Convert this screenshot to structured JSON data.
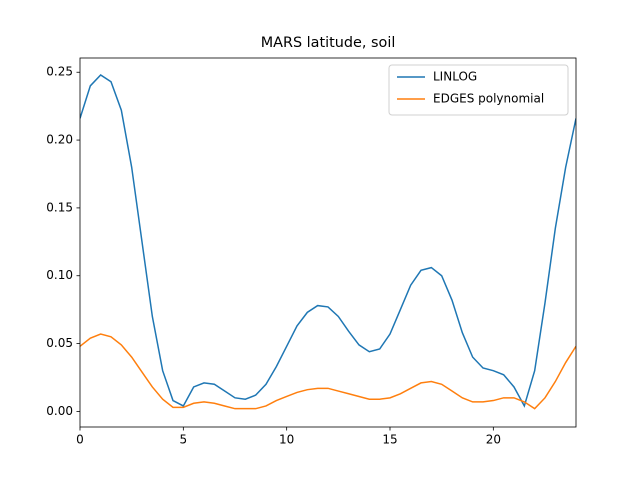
{
  "chart_data": {
    "type": "line",
    "title": "MARS latitude, soil",
    "x": [
      0,
      0.5,
      1,
      1.5,
      2,
      2.5,
      3,
      3.5,
      4,
      4.5,
      5,
      5.5,
      6,
      6.5,
      7,
      7.5,
      8,
      8.5,
      9,
      9.5,
      10,
      10.5,
      11,
      11.5,
      12,
      12.5,
      13,
      13.5,
      14,
      14.5,
      15,
      15.5,
      16,
      16.5,
      17,
      17.5,
      18,
      18.5,
      19,
      19.5,
      20,
      20.5,
      21,
      21.5,
      22,
      22.5,
      23,
      23.5,
      24
    ],
    "series": [
      {
        "name": "LINLOG",
        "color": "#1f77b4",
        "values": [
          0.216,
          0.24,
          0.248,
          0.243,
          0.222,
          0.18,
          0.125,
          0.07,
          0.03,
          0.008,
          0.004,
          0.018,
          0.021,
          0.02,
          0.015,
          0.01,
          0.009,
          0.012,
          0.02,
          0.033,
          0.048,
          0.063,
          0.073,
          0.078,
          0.077,
          0.07,
          0.059,
          0.049,
          0.044,
          0.046,
          0.057,
          0.075,
          0.093,
          0.104,
          0.106,
          0.1,
          0.082,
          0.058,
          0.04,
          0.032,
          0.03,
          0.027,
          0.018,
          0.004,
          0.03,
          0.08,
          0.135,
          0.18,
          0.216
        ]
      },
      {
        "name": "EDGES polynomial",
        "color": "#ff7f0e",
        "values": [
          0.048,
          0.054,
          0.057,
          0.055,
          0.049,
          0.04,
          0.029,
          0.018,
          0.009,
          0.003,
          0.003,
          0.006,
          0.007,
          0.006,
          0.004,
          0.002,
          0.002,
          0.002,
          0.004,
          0.008,
          0.011,
          0.014,
          0.016,
          0.017,
          0.017,
          0.015,
          0.013,
          0.011,
          0.009,
          0.009,
          0.01,
          0.013,
          0.017,
          0.021,
          0.022,
          0.02,
          0.015,
          0.01,
          0.007,
          0.007,
          0.008,
          0.01,
          0.01,
          0.007,
          0.002,
          0.01,
          0.022,
          0.036,
          0.048
        ]
      }
    ],
    "xlim": [
      0,
      24
    ],
    "xticks": [
      0,
      5,
      10,
      15,
      20
    ],
    "ylim": [
      -0.0115,
      0.2605
    ],
    "yticks": [
      {
        "value": 0,
        "label": "0.00"
      },
      {
        "value": 0.05,
        "label": "0.05"
      },
      {
        "value": 0.1,
        "label": "0.10"
      },
      {
        "value": 0.15,
        "label": "0.15"
      },
      {
        "value": 0.2,
        "label": "0.20"
      },
      {
        "value": 0.25,
        "label": "0.25"
      }
    ],
    "legend": "upper right"
  }
}
